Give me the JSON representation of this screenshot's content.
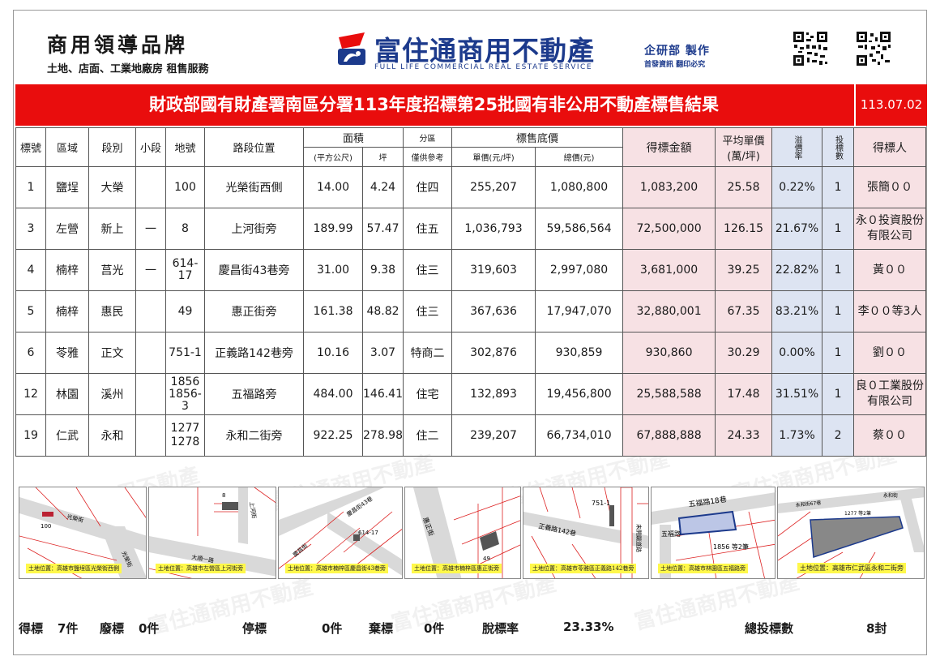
{
  "header": {
    "brand_title": "商用領導品牌",
    "brand_sub": "土地、店面、工業地廠房 租售服務",
    "company_cn": "富住通商用不動產",
    "company_en": "FULL LIFE COMMERCIAL REAL ESTATE SERVICE",
    "dept": "企研部 製作",
    "dept_note": "首發資訊 翻印必究"
  },
  "title_bar": {
    "title": "財政部國有財產署南區分署113年度招標第25批國有非公用不動產標售結果",
    "date": "113.07.02"
  },
  "table": {
    "headers": {
      "lot_no": "標號",
      "area": "區域",
      "section": "段別",
      "subsection": "小段",
      "land_no": "地號",
      "location": "路段位置",
      "size_group": "面積",
      "size_m2": "(平方公尺)",
      "size_ping": "坪",
      "zone_group": "分區",
      "zone_note": "僅供參考",
      "price_group": "標售底價",
      "unit_price": "單價(元/坪)",
      "total_price": "總價(元)",
      "winning_bid": "得標金額",
      "avg_unit_price_1": "平均單價",
      "avg_unit_price_2": "(萬/坪)",
      "premium_rate": "溢價率",
      "bid_count": "投標數",
      "winner": "得標人"
    },
    "rows": [
      {
        "lot": "1",
        "area": "鹽埕",
        "section": "大榮",
        "sub": "",
        "land": "100",
        "location": "光榮街西側",
        "m2": "14.00",
        "ping": "4.24",
        "zone": "住四",
        "unit": "255,207",
        "total": "1,080,800",
        "bid": "1,083,200",
        "avg": "25.58",
        "rate": "0.22%",
        "count": "1",
        "winner": "張簡００"
      },
      {
        "lot": "3",
        "area": "左營",
        "section": "新上",
        "sub": "一",
        "land": "8",
        "location": "上河街旁",
        "m2": "189.99",
        "ping": "57.47",
        "zone": "住五",
        "unit": "1,036,793",
        "total": "59,586,564",
        "bid": "72,500,000",
        "avg": "126.15",
        "rate": "21.67%",
        "count": "1",
        "winner": "永０投資股份有限公司"
      },
      {
        "lot": "4",
        "area": "楠梓",
        "section": "莒光",
        "sub": "一",
        "land": "614-17",
        "location": "慶昌街43巷旁",
        "m2": "31.00",
        "ping": "9.38",
        "zone": "住三",
        "unit": "319,603",
        "total": "2,997,080",
        "bid": "3,681,000",
        "avg": "39.25",
        "rate": "22.82%",
        "count": "1",
        "winner": "黃００"
      },
      {
        "lot": "5",
        "area": "楠梓",
        "section": "惠民",
        "sub": "",
        "land": "49",
        "location": "惠正街旁",
        "m2": "161.38",
        "ping": "48.82",
        "zone": "住三",
        "unit": "367,636",
        "total": "17,947,070",
        "bid": "32,880,001",
        "avg": "67.35",
        "rate": "83.21%",
        "count": "1",
        "winner": "李００等3人"
      },
      {
        "lot": "6",
        "area": "苓雅",
        "section": "正文",
        "sub": "",
        "land": "751-1",
        "location": "正義路142巷旁",
        "m2": "10.16",
        "ping": "3.07",
        "zone": "特商二",
        "unit": "302,876",
        "total": "930,859",
        "bid": "930,860",
        "avg": "30.29",
        "rate": "0.00%",
        "count": "1",
        "winner": "劉００"
      },
      {
        "lot": "12",
        "area": "林園",
        "section": "溪州",
        "sub": "",
        "land": "1856 1856-3",
        "location": "五福路旁",
        "m2": "484.00",
        "ping": "146.41",
        "zone": "住宅",
        "unit": "132,893",
        "total": "19,456,800",
        "bid": "25,588,588",
        "avg": "17.48",
        "rate": "31.51%",
        "count": "1",
        "winner": "良０工業股份有限公司"
      },
      {
        "lot": "19",
        "area": "仁武",
        "section": "永和",
        "sub": "",
        "land": "1277 1278",
        "location": "永和二街旁",
        "m2": "922.25",
        "ping": "278.98",
        "zone": "住二",
        "unit": "239,207",
        "total": "66,734,010",
        "bid": "67,888,888",
        "avg": "24.33",
        "rate": "1.73%",
        "count": "2",
        "winner": "蔡００"
      }
    ]
  },
  "maps": [
    {
      "caption": "土地位置：高雄市鹽埕區光榮街西側",
      "labels": [
        "100",
        "光榮街",
        "光榮街"
      ]
    },
    {
      "caption": "土地位置：高雄市左營區上河街旁",
      "labels": [
        "8",
        "大順一路",
        "上河街"
      ]
    },
    {
      "caption": "土地位置：高雄市楠梓區慶昌街43巷旁",
      "labels": [
        "614-17",
        "慶昌街",
        "慶昌街43巷"
      ]
    },
    {
      "caption": "土地位置：高雄市楠梓區惠正街旁",
      "labels": [
        "惠正街",
        "49"
      ]
    },
    {
      "caption": "土地位置：高雄市苓雅區正義路142巷旁",
      "labels": [
        "751-1",
        "正義路142巷",
        "未開闢道路"
      ]
    },
    {
      "caption": "土地位置：高雄市林園區五福路旁",
      "labels": [
        "五福路18巷",
        "五福路",
        "1856 等2筆"
      ]
    },
    {
      "caption": "土地位置：高雄市仁武區永和二街旁",
      "labels": [
        "永和街67巷",
        "永和街",
        "1277 等2筆"
      ]
    }
  ],
  "footer": {
    "awarded_label": "得標",
    "awarded_value": "7件",
    "void_label": "廢標",
    "void_value": "0件",
    "suspended_label": "停標",
    "suspended_value": "0件",
    "abandoned_label": "棄標",
    "abandoned_value": "0件",
    "rate_label": "脫標率",
    "rate_value": "23.33%",
    "total_bids_label": "總投標數",
    "total_bids_value": "8封"
  },
  "watermark_text": "富住通商用不動產",
  "colors": {
    "title_bar": "#e90d0d",
    "company_blue": "#1c3a8c",
    "pink_cell": "#f7e1e4",
    "blue_cell": "#dde4f2",
    "caption_yellow": "#fff84a"
  }
}
